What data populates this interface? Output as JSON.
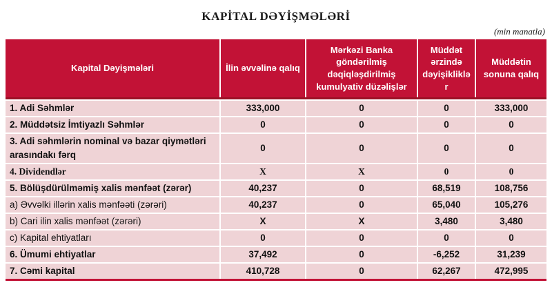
{
  "title": "KAPİTAL DƏYİŞMƏLƏRİ",
  "unit_note": "(min manatla)",
  "colors": {
    "header_bg": "#C21236",
    "header_border": "#9C1126",
    "row_bg": "#EFD3D6",
    "header_text": "#FFFFFF",
    "body_text": "#111111"
  },
  "table": {
    "columns": [
      {
        "label": "Kapital Dəyişmələri"
      },
      {
        "label": "İlin əvvəlinə qalıq"
      },
      {
        "label": "Mərkəzi Banka göndərilmiş dəqiqləşdirilmiş kumulyativ düzəlişlər"
      },
      {
        "label": "Müddət ərzində dəyişikliklər"
      },
      {
        "label": "Müddətin sonuna qalıq"
      }
    ],
    "rows": [
      {
        "label": "1. Adi Səhmlər",
        "bold": true,
        "serif": false,
        "values": [
          "333,000",
          "0",
          "0",
          "333,000"
        ]
      },
      {
        "label": "2. Müddətsiz İmtiyazlı Səhmlər",
        "bold": true,
        "serif": false,
        "values": [
          "0",
          "0",
          "0",
          "0"
        ]
      },
      {
        "label": "3. Adi səhmlərin nominal və bazar qiymətləri arasındakı fərq",
        "bold": true,
        "serif": false,
        "values": [
          "0",
          "0",
          "0",
          "0"
        ]
      },
      {
        "label": "4. Dividendlər",
        "bold": true,
        "serif": true,
        "values": [
          "X",
          "X",
          "0",
          "0"
        ]
      },
      {
        "label": "5. Bölüşdürülməmiş xalis mənfəət (zərər)",
        "bold": true,
        "serif": false,
        "values": [
          "40,237",
          "0",
          "68,519",
          "108,756"
        ]
      },
      {
        "label": "a) Əvvəlki illərin xalis mənfəəti (zərəri)",
        "bold": false,
        "serif": false,
        "values": [
          "40,237",
          "0",
          "65,040",
          "105,276"
        ]
      },
      {
        "label": "b) Cari ilin xalis mənfəət (zərəri)",
        "bold": false,
        "serif": false,
        "values": [
          "X",
          "X",
          "3,480",
          "3,480"
        ]
      },
      {
        "label": "c) Kapital ehtiyatları",
        "bold": false,
        "serif": false,
        "values": [
          "0",
          "0",
          "0",
          "0"
        ]
      },
      {
        "label": "6. Ümumi ehtiyatlar",
        "bold": true,
        "serif": false,
        "values": [
          "37,492",
          "0",
          "-6,252",
          "31,239"
        ]
      },
      {
        "label": "7. Cəmi kapital",
        "bold": true,
        "serif": false,
        "values": [
          "410,728",
          "0",
          "62,267",
          "472,995"
        ]
      }
    ]
  }
}
